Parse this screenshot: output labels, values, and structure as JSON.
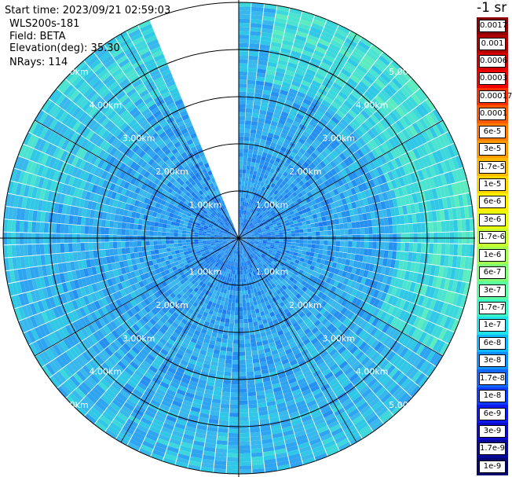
{
  "header": {
    "start_time": "Start time: 2023/09/21 02:59:03",
    "instrument": "WLS200s-181",
    "field": "Field: BETA",
    "elevation": "Elevation(deg): 35.30",
    "nrays": "NRays: 114"
  },
  "colorbar": {
    "unit_title": "-1 sr",
    "labels": [
      "0.0017",
      "0.001",
      "0.0006",
      "0.0003",
      "0.00017",
      "0.0001",
      "6e-5",
      "3e-5",
      "1.7e-5",
      "1e-5",
      "6e-6",
      "3e-6",
      "1.7e-6",
      "1e-6",
      "6e-7",
      "3e-7",
      "1.7e-7",
      "1e-7",
      "6e-8",
      "3e-8",
      "1.7e-8",
      "1e-8",
      "6e-9",
      "3e-9",
      "1.7e-9",
      "1e-9"
    ],
    "colors": [
      "#8b0000",
      "#b00000",
      "#d40000",
      "#f00000",
      "#ff3000",
      "#ff5a00",
      "#ff7a00",
      "#ff9a00",
      "#ffba00",
      "#ffd800",
      "#fff000",
      "#eaff10",
      "#c8ff30",
      "#a4ff52",
      "#80ff74",
      "#5cffa0",
      "#3cf7c8",
      "#20e2ea",
      "#10b8ff",
      "#1090ff",
      "#1066ff",
      "#103cff",
      "#1018f0",
      "#0c0cc8",
      "#080898",
      "#040470"
    ]
  },
  "chart_data": {
    "type": "heatmap",
    "plot_type": "PPI",
    "max_range_km": 5.0,
    "rays": 114,
    "missing_sector_azimuth_deg": [
      338,
      360
    ],
    "range_rings": [
      {
        "km": 1.0,
        "label": "1.00km"
      },
      {
        "km": 2.0,
        "label": "2.00km"
      },
      {
        "km": 3.0,
        "label": "3.00km"
      },
      {
        "km": 4.0,
        "label": "4.00km"
      },
      {
        "km": 5.0,
        "label": "5.00km"
      }
    ],
    "radials_deg": [
      0,
      30,
      60,
      90,
      120,
      150,
      180,
      210,
      240,
      270,
      300,
      330
    ],
    "value_range": [
      "1e-9",
      "0.0017"
    ],
    "unit": "-1 sr",
    "field": "BETA"
  }
}
